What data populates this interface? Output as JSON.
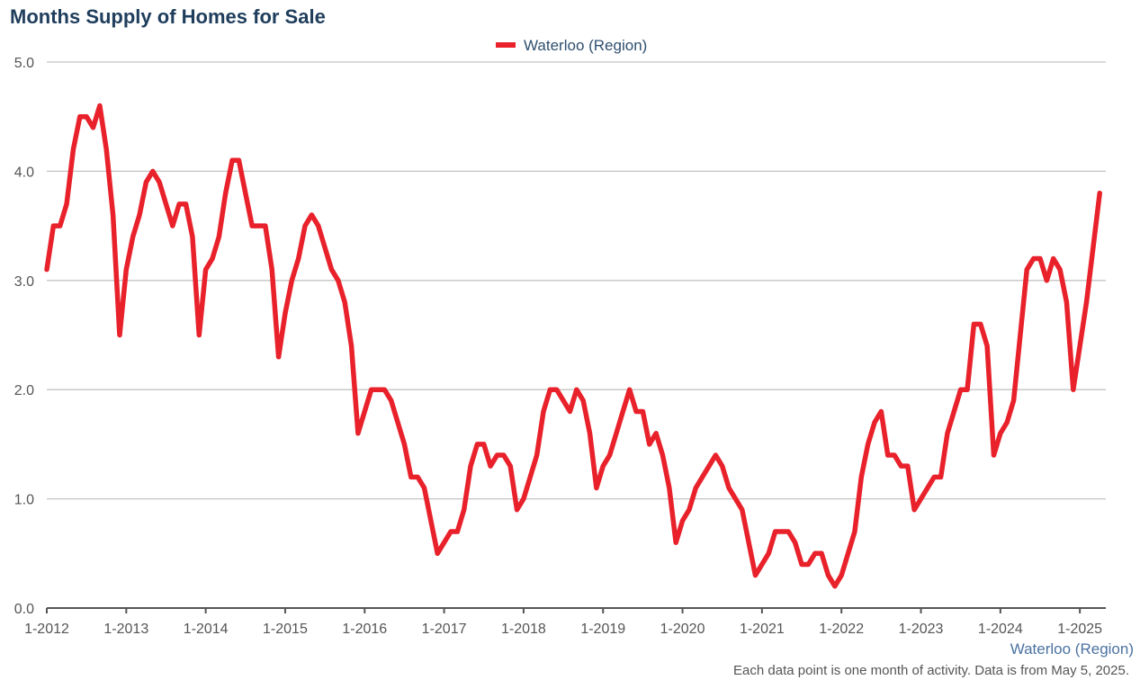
{
  "chart_data": {
    "type": "line",
    "title": "Months Supply of Homes for Sale",
    "xlabel": "",
    "ylabel": "",
    "legend_position": "top-center",
    "grid": true,
    "ylim": [
      0,
      5
    ],
    "y_ticks": [
      "0.0",
      "1.0",
      "2.0",
      "3.0",
      "4.0",
      "5.0"
    ],
    "x_tick_labels": [
      "1-2012",
      "1-2013",
      "1-2014",
      "1-2015",
      "1-2016",
      "1-2017",
      "1-2018",
      "1-2019",
      "1-2020",
      "1-2021",
      "1-2022",
      "1-2023",
      "1-2024",
      "1-2025"
    ],
    "x_start": "2012-01",
    "series": [
      {
        "name": "Waterloo (Region)",
        "color": "#e8212b",
        "values": [
          3.1,
          3.5,
          3.5,
          3.7,
          4.2,
          4.5,
          4.5,
          4.4,
          4.6,
          4.2,
          3.6,
          2.5,
          3.1,
          3.4,
          3.6,
          3.9,
          4.0,
          3.9,
          3.7,
          3.5,
          3.7,
          3.7,
          3.4,
          2.5,
          3.1,
          3.2,
          3.4,
          3.8,
          4.1,
          4.1,
          3.8,
          3.5,
          3.5,
          3.5,
          3.1,
          2.3,
          2.7,
          3.0,
          3.2,
          3.5,
          3.6,
          3.5,
          3.3,
          3.1,
          3.0,
          2.8,
          2.4,
          1.6,
          1.8,
          2.0,
          2.0,
          2.0,
          1.9,
          1.7,
          1.5,
          1.2,
          1.2,
          1.1,
          0.8,
          0.5,
          0.6,
          0.7,
          0.7,
          0.9,
          1.3,
          1.5,
          1.5,
          1.3,
          1.4,
          1.4,
          1.3,
          0.9,
          1.0,
          1.2,
          1.4,
          1.8,
          2.0,
          2.0,
          1.9,
          1.8,
          2.0,
          1.9,
          1.6,
          1.1,
          1.3,
          1.4,
          1.6,
          1.8,
          2.0,
          1.8,
          1.8,
          1.5,
          1.6,
          1.4,
          1.1,
          0.6,
          0.8,
          0.9,
          1.1,
          1.2,
          1.3,
          1.4,
          1.3,
          1.1,
          1.0,
          0.9,
          0.6,
          0.3,
          0.4,
          0.5,
          0.7,
          0.7,
          0.7,
          0.6,
          0.4,
          0.4,
          0.5,
          0.5,
          0.3,
          0.2,
          0.3,
          0.5,
          0.7,
          1.2,
          1.5,
          1.7,
          1.8,
          1.4,
          1.4,
          1.3,
          1.3,
          0.9,
          1.0,
          1.1,
          1.2,
          1.2,
          1.6,
          1.8,
          2.0,
          2.0,
          2.6,
          2.6,
          2.4,
          1.4,
          1.6,
          1.7,
          1.9,
          2.5,
          3.1,
          3.2,
          3.2,
          3.0,
          3.2,
          3.1,
          2.8,
          2.0,
          2.4,
          2.8,
          3.3,
          3.8
        ]
      }
    ]
  },
  "x_axis_caption": "Waterloo (Region)",
  "footnote": "Each data point is one month of activity. Data is from May 5, 2025."
}
